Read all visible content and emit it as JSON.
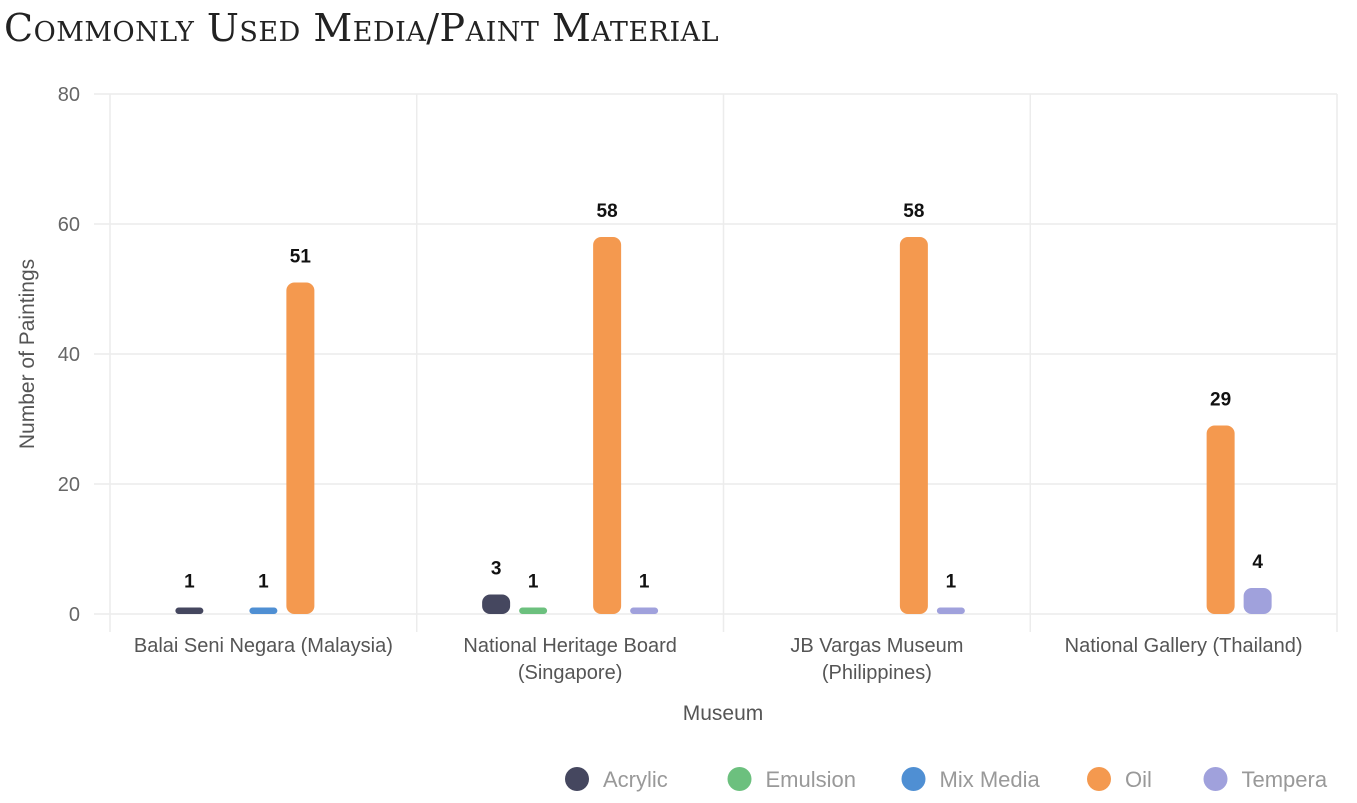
{
  "chart_data": {
    "type": "bar",
    "title": "Commonly Used Media/Paint Material",
    "xlabel": "Museum",
    "ylabel": "Number of Paintings",
    "ylim": [
      0,
      80
    ],
    "yticks": [
      0,
      20,
      40,
      60,
      80
    ],
    "grid": true,
    "legend_position": "bottom-right",
    "categories": [
      [
        "Balai Seni Negara (Malaysia)"
      ],
      [
        "National Heritage Board",
        "(Singapore)"
      ],
      [
        "JB Vargas Museum",
        "(Philippines)"
      ],
      [
        "National Gallery (Thailand)"
      ]
    ],
    "series": [
      {
        "name": "Acrylic",
        "color": "#45475f",
        "values": [
          1,
          3,
          null,
          null
        ]
      },
      {
        "name": "Emulsion",
        "color": "#6cc07e",
        "values": [
          null,
          1,
          null,
          null
        ]
      },
      {
        "name": "Mix Media",
        "color": "#4f8fd3",
        "values": [
          1,
          null,
          null,
          null
        ]
      },
      {
        "name": "Oil",
        "color": "#f4994f",
        "values": [
          51,
          58,
          58,
          29
        ]
      },
      {
        "name": "Tempera",
        "color": "#a0a1dc",
        "values": [
          null,
          1,
          1,
          4
        ]
      }
    ]
  }
}
